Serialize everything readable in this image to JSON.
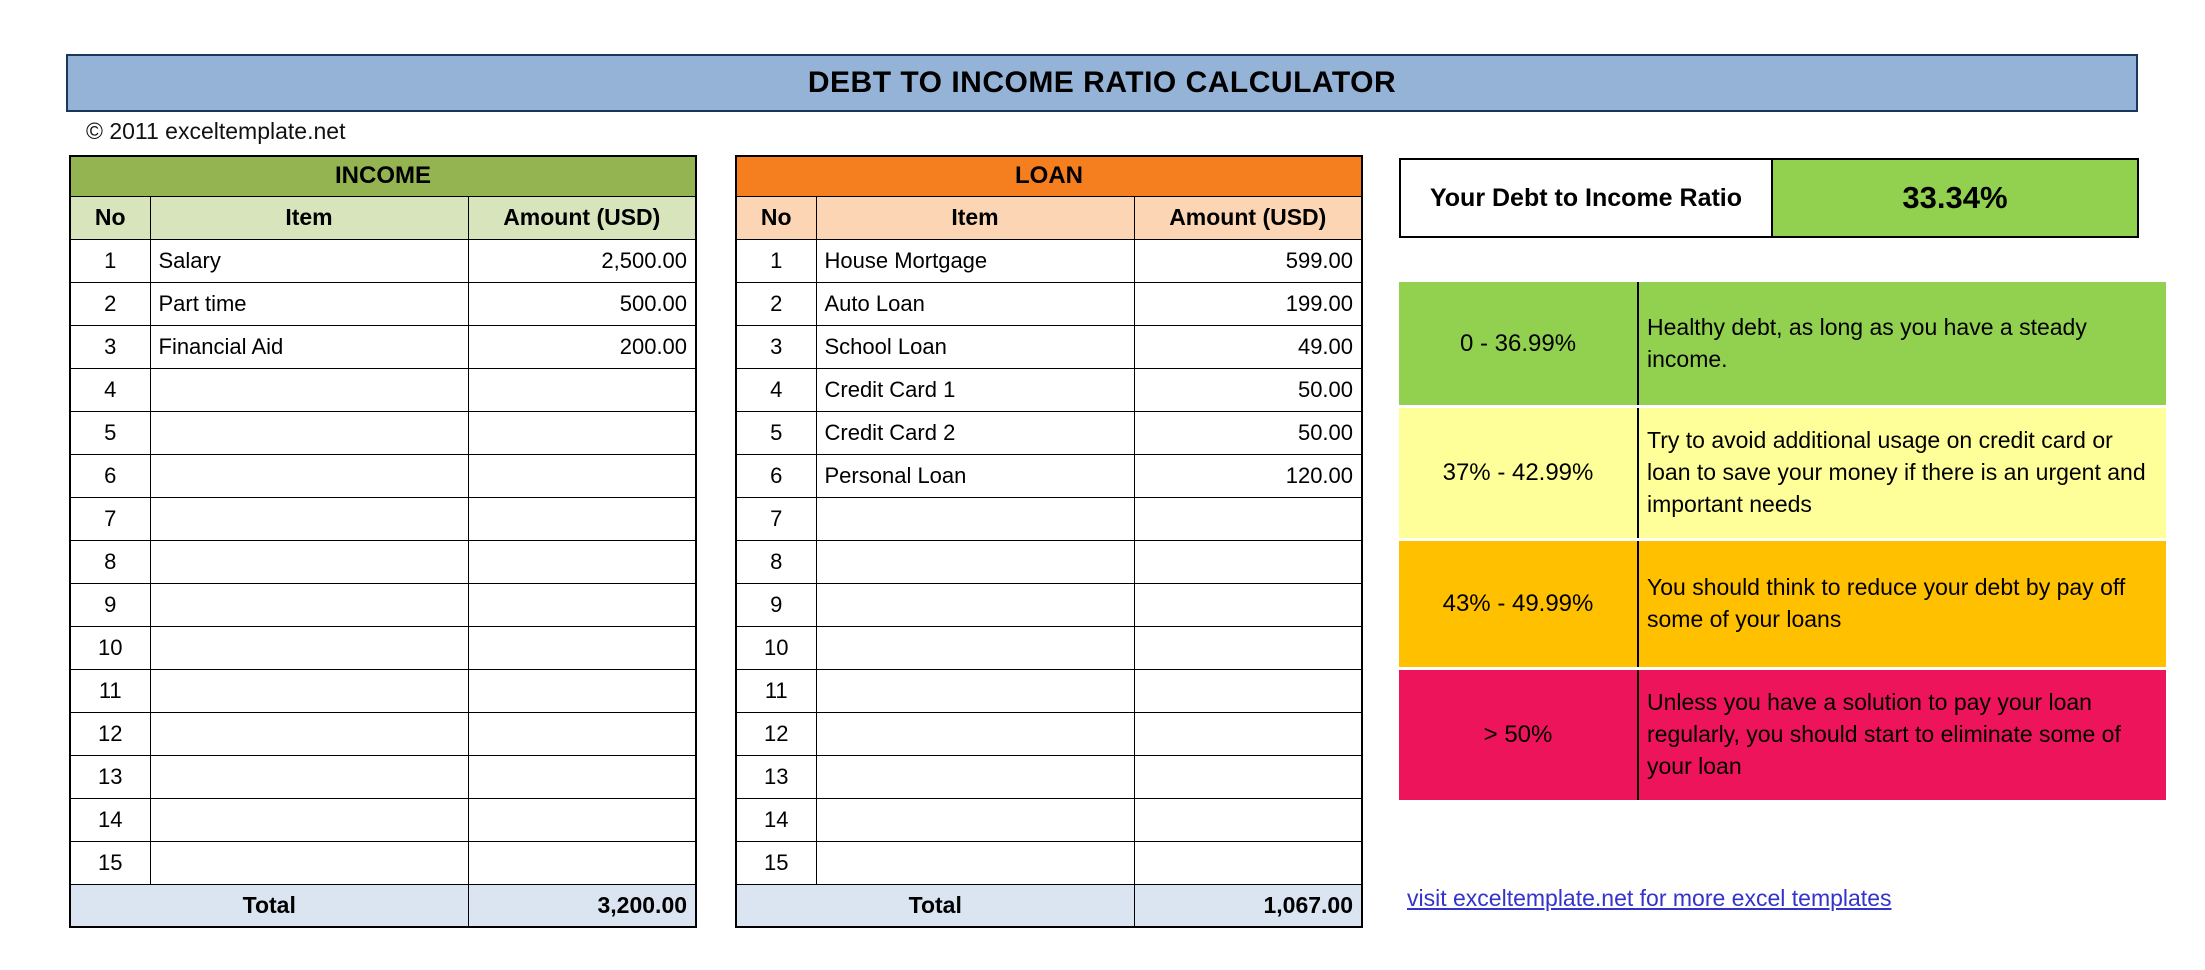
{
  "banner": {
    "title": "DEBT TO INCOME RATIO CALCULATOR"
  },
  "copyright": "© 2011 exceltemplate.net",
  "income_table": {
    "title": "INCOME",
    "columns": [
      "No",
      "Item",
      "Amount (USD)"
    ],
    "rows": [
      {
        "no": "1",
        "item": "Salary",
        "amount": "2,500.00"
      },
      {
        "no": "2",
        "item": "Part time",
        "amount": "500.00"
      },
      {
        "no": "3",
        "item": "Financial Aid",
        "amount": "200.00"
      },
      {
        "no": "4",
        "item": "",
        "amount": ""
      },
      {
        "no": "5",
        "item": "",
        "amount": ""
      },
      {
        "no": "6",
        "item": "",
        "amount": ""
      },
      {
        "no": "7",
        "item": "",
        "amount": ""
      },
      {
        "no": "8",
        "item": "",
        "amount": ""
      },
      {
        "no": "9",
        "item": "",
        "amount": ""
      },
      {
        "no": "10",
        "item": "",
        "amount": ""
      },
      {
        "no": "11",
        "item": "",
        "amount": ""
      },
      {
        "no": "12",
        "item": "",
        "amount": ""
      },
      {
        "no": "13",
        "item": "",
        "amount": ""
      },
      {
        "no": "14",
        "item": "",
        "amount": ""
      },
      {
        "no": "15",
        "item": "",
        "amount": ""
      }
    ],
    "total_label": "Total",
    "total": "3,200.00"
  },
  "loan_table": {
    "title": "LOAN",
    "columns": [
      "No",
      "Item",
      "Amount (USD)"
    ],
    "rows": [
      {
        "no": "1",
        "item": "House Mortgage",
        "amount": "599.00"
      },
      {
        "no": "2",
        "item": "Auto Loan",
        "amount": "199.00"
      },
      {
        "no": "3",
        "item": "School Loan",
        "amount": "49.00"
      },
      {
        "no": "4",
        "item": "Credit Card 1",
        "amount": "50.00"
      },
      {
        "no": "5",
        "item": "Credit Card 2",
        "amount": "50.00"
      },
      {
        "no": "6",
        "item": "Personal Loan",
        "amount": "120.00"
      },
      {
        "no": "7",
        "item": "",
        "amount": ""
      },
      {
        "no": "8",
        "item": "",
        "amount": ""
      },
      {
        "no": "9",
        "item": "",
        "amount": ""
      },
      {
        "no": "10",
        "item": "",
        "amount": ""
      },
      {
        "no": "11",
        "item": "",
        "amount": ""
      },
      {
        "no": "12",
        "item": "",
        "amount": ""
      },
      {
        "no": "13",
        "item": "",
        "amount": ""
      },
      {
        "no": "14",
        "item": "",
        "amount": ""
      },
      {
        "no": "15",
        "item": "",
        "amount": ""
      }
    ],
    "total_label": "Total",
    "total": "1,067.00"
  },
  "ratio": {
    "label": "Your Debt to Income Ratio",
    "value": "33.34%"
  },
  "legend": {
    "rows": [
      {
        "range": "0 - 36.99%",
        "description": "Healthy debt, as long as you have a steady income.",
        "color": "#92D050"
      },
      {
        "range": "37% - 42.99%",
        "description": "Try to avoid additional usage on credit card or loan to save your money if there is an urgent and important needs",
        "color": "#FFFF99"
      },
      {
        "range": "43% - 49.99%",
        "description": "You should think to reduce your debt by pay off some of your loans",
        "color": "#FFC000"
      },
      {
        "range": "> 50%",
        "description": "Unless you have a solution to pay your loan regularly, you should start to eliminate some of your loan",
        "color": "#ED145B"
      }
    ]
  },
  "footer": {
    "link_text": "visit exceltemplate.net for more excel templates"
  },
  "colors": {
    "banner_bg": "#95B3D7",
    "income_header_bg": "#94B351",
    "income_subheader_bg": "#D7E4BC",
    "loan_header_bg": "#F57E1E",
    "loan_subheader_bg": "#FCD5B4",
    "total_row_bg": "#DBE5F1",
    "ratio_value_bg": "#92D050",
    "legend_green": "#92D050",
    "legend_yellow": "#FFFF99",
    "legend_amber": "#FFC000",
    "legend_pink": "#ED145B",
    "link_color": "#3333CC"
  }
}
